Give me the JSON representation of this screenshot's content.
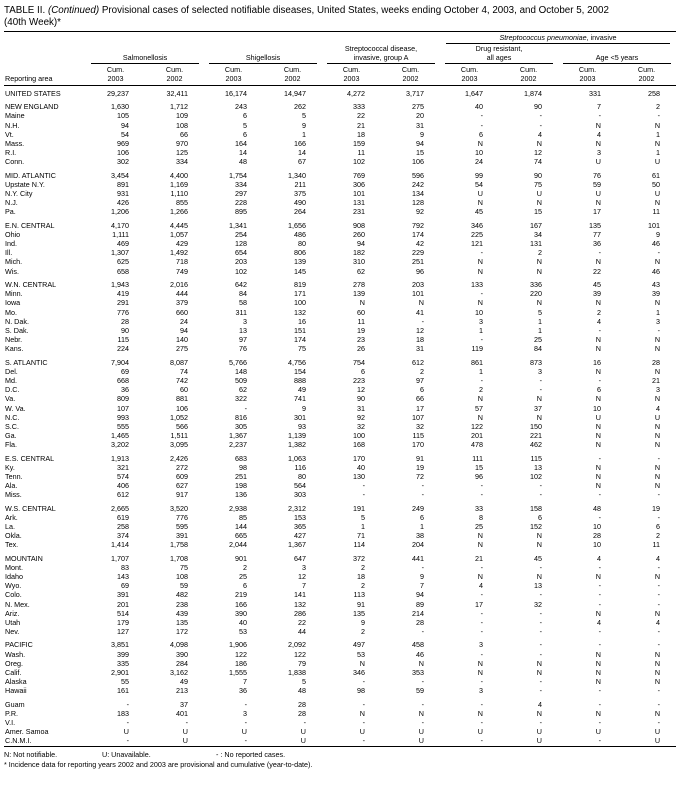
{
  "title": {
    "label": "TABLE II.",
    "continued": "(Continued)",
    "text": "Provisional cases of selected notifiable diseases, United States, weeks ending October 4, 2003, and October 5, 2002",
    "week": "(40th Week)*"
  },
  "header": {
    "reporting_area": "Reporting area",
    "sp_italic": "Streptococcus pneumoniae",
    "sp_rest": ", invasive",
    "groups": [
      {
        "lines": [
          "Salmonellosis"
        ]
      },
      {
        "lines": [
          "Shigellosis"
        ]
      },
      {
        "lines": [
          "Streptococcal disease,",
          "invasive, group A"
        ]
      },
      {
        "lines": [
          "Drug resistant,",
          "all ages"
        ]
      },
      {
        "lines": [
          "Age <5 years"
        ]
      }
    ],
    "sub_columns": [
      {
        "line1": "Cum.",
        "line2": "2003"
      },
      {
        "line1": "Cum.",
        "line2": "2002"
      },
      {
        "line1": "Cum.",
        "line2": "2003"
      },
      {
        "line1": "Cum.",
        "line2": "2002"
      },
      {
        "line1": "Cum.",
        "line2": "2003"
      },
      {
        "line1": "Cum.",
        "line2": "2002"
      },
      {
        "line1": "Cum.",
        "line2": "2003"
      },
      {
        "line1": "Cum.",
        "line2": "2002"
      },
      {
        "line1": "Cum.",
        "line2": "2003"
      },
      {
        "line1": "Cum.",
        "line2": "2002"
      }
    ]
  },
  "rows": [
    {
      "area": "UNITED STATES",
      "v": [
        "29,237",
        "32,411",
        "16,174",
        "14,947",
        "4,272",
        "3,717",
        "1,647",
        "1,874",
        "331",
        "258"
      ]
    },
    {
      "area": "NEW ENGLAND",
      "gap": true,
      "v": [
        "1,630",
        "1,712",
        "243",
        "262",
        "333",
        "275",
        "40",
        "90",
        "7",
        "2"
      ]
    },
    {
      "area": "Maine",
      "v": [
        "105",
        "109",
        "6",
        "5",
        "22",
        "20",
        "-",
        "-",
        "-",
        "-"
      ]
    },
    {
      "area": "N.H.",
      "v": [
        "94",
        "108",
        "5",
        "9",
        "21",
        "31",
        "-",
        "-",
        "N",
        "N"
      ]
    },
    {
      "area": "Vt.",
      "v": [
        "54",
        "66",
        "6",
        "1",
        "18",
        "9",
        "6",
        "4",
        "4",
        "1"
      ]
    },
    {
      "area": "Mass.",
      "v": [
        "969",
        "970",
        "164",
        "166",
        "159",
        "94",
        "N",
        "N",
        "N",
        "N"
      ]
    },
    {
      "area": "R.I.",
      "v": [
        "106",
        "125",
        "14",
        "14",
        "11",
        "15",
        "10",
        "12",
        "3",
        "1"
      ]
    },
    {
      "area": "Conn.",
      "v": [
        "302",
        "334",
        "48",
        "67",
        "102",
        "106",
        "24",
        "74",
        "U",
        "U"
      ]
    },
    {
      "area": "MID. ATLANTIC",
      "gap": true,
      "v": [
        "3,454",
        "4,400",
        "1,754",
        "1,340",
        "769",
        "596",
        "99",
        "90",
        "76",
        "61"
      ]
    },
    {
      "area": "Upstate N.Y.",
      "v": [
        "891",
        "1,169",
        "334",
        "211",
        "306",
        "242",
        "54",
        "75",
        "59",
        "50"
      ]
    },
    {
      "area": "N.Y. City",
      "v": [
        "931",
        "1,110",
        "297",
        "375",
        "101",
        "134",
        "U",
        "U",
        "U",
        "U"
      ]
    },
    {
      "area": "N.J.",
      "v": [
        "426",
        "855",
        "228",
        "490",
        "131",
        "128",
        "N",
        "N",
        "N",
        "N"
      ]
    },
    {
      "area": "Pa.",
      "v": [
        "1,206",
        "1,266",
        "895",
        "264",
        "231",
        "92",
        "45",
        "15",
        "17",
        "11"
      ]
    },
    {
      "area": "E.N. CENTRAL",
      "gap": true,
      "v": [
        "4,170",
        "4,445",
        "1,341",
        "1,656",
        "908",
        "792",
        "346",
        "167",
        "135",
        "101"
      ]
    },
    {
      "area": "Ohio",
      "v": [
        "1,111",
        "1,057",
        "254",
        "486",
        "260",
        "174",
        "225",
        "34",
        "77",
        "9"
      ]
    },
    {
      "area": "Ind.",
      "v": [
        "469",
        "429",
        "128",
        "80",
        "94",
        "42",
        "121",
        "131",
        "36",
        "46"
      ]
    },
    {
      "area": "Ill.",
      "v": [
        "1,307",
        "1,492",
        "654",
        "806",
        "182",
        "229",
        "-",
        "2",
        "-",
        "-"
      ]
    },
    {
      "area": "Mich.",
      "v": [
        "625",
        "718",
        "203",
        "139",
        "310",
        "251",
        "N",
        "N",
        "N",
        "N"
      ]
    },
    {
      "area": "Wis.",
      "v": [
        "658",
        "749",
        "102",
        "145",
        "62",
        "96",
        "N",
        "N",
        "22",
        "46"
      ]
    },
    {
      "area": "W.N. CENTRAL",
      "gap": true,
      "v": [
        "1,943",
        "2,016",
        "642",
        "819",
        "278",
        "203",
        "133",
        "336",
        "45",
        "43"
      ]
    },
    {
      "area": "Minn.",
      "v": [
        "419",
        "444",
        "84",
        "171",
        "139",
        "101",
        "-",
        "220",
        "39",
        "39"
      ]
    },
    {
      "area": "Iowa",
      "v": [
        "291",
        "379",
        "58",
        "100",
        "N",
        "N",
        "N",
        "N",
        "N",
        "N"
      ]
    },
    {
      "area": "Mo.",
      "v": [
        "776",
        "660",
        "311",
        "132",
        "60",
        "41",
        "10",
        "5",
        "2",
        "1"
      ]
    },
    {
      "area": "N. Dak.",
      "v": [
        "28",
        "24",
        "3",
        "16",
        "11",
        "-",
        "3",
        "1",
        "4",
        "3"
      ]
    },
    {
      "area": "S. Dak.",
      "v": [
        "90",
        "94",
        "13",
        "151",
        "19",
        "12",
        "1",
        "1",
        "-",
        "-"
      ]
    },
    {
      "area": "Nebr.",
      "v": [
        "115",
        "140",
        "97",
        "174",
        "23",
        "18",
        "-",
        "25",
        "N",
        "N"
      ]
    },
    {
      "area": "Kans.",
      "v": [
        "224",
        "275",
        "76",
        "75",
        "26",
        "31",
        "119",
        "84",
        "N",
        "N"
      ]
    },
    {
      "area": "S. ATLANTIC",
      "gap": true,
      "v": [
        "7,904",
        "8,087",
        "5,766",
        "4,756",
        "754",
        "612",
        "861",
        "873",
        "16",
        "28"
      ]
    },
    {
      "area": "Del.",
      "v": [
        "69",
        "74",
        "148",
        "154",
        "6",
        "2",
        "1",
        "3",
        "N",
        "N"
      ]
    },
    {
      "area": "Md.",
      "v": [
        "668",
        "742",
        "509",
        "888",
        "223",
        "97",
        "-",
        "-",
        "-",
        "21"
      ]
    },
    {
      "area": "D.C.",
      "v": [
        "36",
        "60",
        "62",
        "49",
        "12",
        "6",
        "2",
        "-",
        "6",
        "3"
      ]
    },
    {
      "area": "Va.",
      "v": [
        "809",
        "881",
        "322",
        "741",
        "90",
        "66",
        "N",
        "N",
        "N",
        "N"
      ]
    },
    {
      "area": "W. Va.",
      "v": [
        "107",
        "106",
        "-",
        "9",
        "31",
        "17",
        "57",
        "37",
        "10",
        "4"
      ]
    },
    {
      "area": "N.C.",
      "v": [
        "993",
        "1,052",
        "816",
        "301",
        "92",
        "107",
        "N",
        "N",
        "U",
        "U"
      ]
    },
    {
      "area": "S.C.",
      "v": [
        "555",
        "566",
        "305",
        "93",
        "32",
        "32",
        "122",
        "150",
        "N",
        "N"
      ]
    },
    {
      "area": "Ga.",
      "v": [
        "1,465",
        "1,511",
        "1,367",
        "1,139",
        "100",
        "115",
        "201",
        "221",
        "N",
        "N"
      ]
    },
    {
      "area": "Fla.",
      "v": [
        "3,202",
        "3,095",
        "2,237",
        "1,382",
        "168",
        "170",
        "478",
        "462",
        "N",
        "N"
      ]
    },
    {
      "area": "E.S. CENTRAL",
      "gap": true,
      "v": [
        "1,913",
        "2,426",
        "683",
        "1,063",
        "170",
        "91",
        "111",
        "115",
        "-",
        "-"
      ]
    },
    {
      "area": "Ky.",
      "v": [
        "321",
        "272",
        "98",
        "116",
        "40",
        "19",
        "15",
        "13",
        "N",
        "N"
      ]
    },
    {
      "area": "Tenn.",
      "v": [
        "574",
        "609",
        "251",
        "80",
        "130",
        "72",
        "96",
        "102",
        "N",
        "N"
      ]
    },
    {
      "area": "Ala.",
      "v": [
        "406",
        "627",
        "198",
        "564",
        "-",
        "-",
        "-",
        "-",
        "N",
        "N"
      ]
    },
    {
      "area": "Miss.",
      "v": [
        "612",
        "917",
        "136",
        "303",
        "-",
        "-",
        "-",
        "-",
        "-",
        "-"
      ]
    },
    {
      "area": "W.S. CENTRAL",
      "gap": true,
      "v": [
        "2,665",
        "3,520",
        "2,938",
        "2,312",
        "191",
        "249",
        "33",
        "158",
        "48",
        "19"
      ]
    },
    {
      "area": "Ark.",
      "v": [
        "619",
        "776",
        "85",
        "153",
        "5",
        "6",
        "8",
        "6",
        "-",
        "-"
      ]
    },
    {
      "area": "La.",
      "v": [
        "258",
        "595",
        "144",
        "365",
        "1",
        "1",
        "25",
        "152",
        "10",
        "6"
      ]
    },
    {
      "area": "Okla.",
      "v": [
        "374",
        "391",
        "665",
        "427",
        "71",
        "38",
        "N",
        "N",
        "28",
        "2"
      ]
    },
    {
      "area": "Tex.",
      "v": [
        "1,414",
        "1,758",
        "2,044",
        "1,367",
        "114",
        "204",
        "N",
        "N",
        "10",
        "11"
      ]
    },
    {
      "area": "MOUNTAIN",
      "gap": true,
      "v": [
        "1,707",
        "1,708",
        "901",
        "647",
        "372",
        "441",
        "21",
        "45",
        "4",
        "4"
      ]
    },
    {
      "area": "Mont.",
      "v": [
        "83",
        "75",
        "2",
        "3",
        "2",
        "-",
        "-",
        "-",
        "-",
        "-"
      ]
    },
    {
      "area": "Idaho",
      "v": [
        "143",
        "108",
        "25",
        "12",
        "18",
        "9",
        "N",
        "N",
        "N",
        "N"
      ]
    },
    {
      "area": "Wyo.",
      "v": [
        "69",
        "59",
        "6",
        "7",
        "2",
        "7",
        "4",
        "13",
        "-",
        "-"
      ]
    },
    {
      "area": "Colo.",
      "v": [
        "391",
        "482",
        "219",
        "141",
        "113",
        "94",
        "-",
        "-",
        "-",
        "-"
      ]
    },
    {
      "area": "N. Mex.",
      "v": [
        "201",
        "238",
        "166",
        "132",
        "91",
        "89",
        "17",
        "32",
        "-",
        "-"
      ]
    },
    {
      "area": "Ariz.",
      "v": [
        "514",
        "439",
        "390",
        "286",
        "135",
        "214",
        "-",
        "-",
        "N",
        "N"
      ]
    },
    {
      "area": "Utah",
      "v": [
        "179",
        "135",
        "40",
        "22",
        "9",
        "28",
        "-",
        "-",
        "4",
        "4"
      ]
    },
    {
      "area": "Nev.",
      "v": [
        "127",
        "172",
        "53",
        "44",
        "2",
        "-",
        "-",
        "-",
        "-",
        "-"
      ]
    },
    {
      "area": "PACIFIC",
      "gap": true,
      "v": [
        "3,851",
        "4,098",
        "1,906",
        "2,092",
        "497",
        "458",
        "3",
        "-",
        "-",
        "-"
      ]
    },
    {
      "area": "Wash.",
      "v": [
        "399",
        "390",
        "122",
        "122",
        "53",
        "46",
        "-",
        "-",
        "N",
        "N"
      ]
    },
    {
      "area": "Oreg.",
      "v": [
        "335",
        "284",
        "186",
        "79",
        "N",
        "N",
        "N",
        "N",
        "N",
        "N"
      ]
    },
    {
      "area": "Calif.",
      "v": [
        "2,901",
        "3,162",
        "1,555",
        "1,838",
        "346",
        "353",
        "N",
        "N",
        "N",
        "N"
      ]
    },
    {
      "area": "Alaska",
      "v": [
        "55",
        "49",
        "7",
        "5",
        "-",
        "-",
        "-",
        "-",
        "N",
        "N"
      ]
    },
    {
      "area": "Hawaii",
      "v": [
        "161",
        "213",
        "36",
        "48",
        "98",
        "59",
        "3",
        "-",
        "-",
        "-"
      ]
    },
    {
      "area": "Guam",
      "gap": true,
      "v": [
        "-",
        "37",
        "-",
        "28",
        "-",
        "-",
        "-",
        "4",
        "-",
        "-"
      ]
    },
    {
      "area": "P.R.",
      "v": [
        "183",
        "401",
        "3",
        "28",
        "N",
        "N",
        "N",
        "N",
        "N",
        "N"
      ]
    },
    {
      "area": "V.I.",
      "v": [
        "-",
        "-",
        "-",
        "-",
        "-",
        "-",
        "-",
        "-",
        "-",
        "-"
      ]
    },
    {
      "area": "Amer. Samoa",
      "v": [
        "U",
        "U",
        "U",
        "U",
        "U",
        "U",
        "U",
        "U",
        "U",
        "U"
      ]
    },
    {
      "area": "C.N.M.I.",
      "v": [
        "-",
        "U",
        "-",
        "U",
        "-",
        "U",
        "-",
        "U",
        "-",
        "U"
      ]
    }
  ],
  "footnotes": {
    "legend": [
      "N: Not notifiable.",
      "U: Unavailable.",
      "- : No reported cases."
    ],
    "note": "* Incidence data for reporting years 2002 and 2003 are provisional and cumulative (year-to-date)."
  }
}
